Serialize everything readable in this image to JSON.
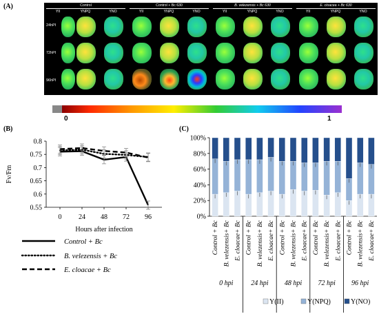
{
  "panels": {
    "a": "(A)",
    "b": "(B)",
    "c": "(C)"
  },
  "grid": {
    "groups": [
      {
        "label": "Control",
        "italic": false
      },
      {
        "label": "Control + Bc 630",
        "italic": false
      },
      {
        "label": "B. velezensis + Bc 630",
        "italic": true
      },
      {
        "label": "E. cloacea + Bc 630",
        "italic": true
      }
    ],
    "subheaders": [
      "YII",
      "YNPQ",
      "YNO"
    ],
    "rows": [
      "24hPI",
      "72hPI",
      "96hPI"
    ],
    "colorbar": {
      "min_label": "0",
      "max_label": "1"
    }
  },
  "chart_b": {
    "ylabel": "Fv/Fm",
    "xlabel": "Hours after infection",
    "legend": [
      "Control + Bc",
      "B. velezensis + Bc",
      "E. cloacae + Bc"
    ]
  },
  "chart_c": {
    "legend": [
      "Y(II)",
      "Y(NPQ)",
      "Y(NO)"
    ],
    "bar_labels": [
      "Control + Bc",
      "B. velezensis+ Bc",
      "E. cloacae+ Bc"
    ],
    "time_labels": [
      "0 hpi",
      "24 hpi",
      "48 hpi",
      "72 hpi",
      "96 hpi"
    ]
  },
  "colors": {
    "yii": "#dbe5f1",
    "ynpq": "#95b3d7",
    "yno": "#254f8c"
  },
  "chart_data": [
    {
      "type": "line",
      "x": [
        0,
        24,
        48,
        72,
        96
      ],
      "xticks": [
        "0",
        "24",
        "48",
        "72",
        "96"
      ],
      "ylim": [
        0.55,
        0.8
      ],
      "yticks": [
        "0.55",
        "0.6",
        "0.65",
        "0.7",
        "0.75",
        "0.8"
      ],
      "series": [
        {
          "name": "Control + Bc",
          "values": [
            0.76,
            0.762,
            0.73,
            0.74,
            0.558
          ],
          "style": "solid"
        },
        {
          "name": "B. velezensis + Bc",
          "values": [
            0.765,
            0.768,
            0.752,
            0.748,
            0.74
          ],
          "style": "dotted"
        },
        {
          "name": "E. cloacae + Bc",
          "values": [
            0.77,
            0.774,
            0.763,
            0.757,
            0.738
          ],
          "style": "dashed"
        }
      ]
    },
    {
      "type": "bar",
      "stacked": true,
      "ylim": [
        0,
        100
      ],
      "yticks": [
        "0%",
        "20%",
        "40%",
        "60%",
        "80%",
        "100%"
      ],
      "groups": [
        "0 hpi",
        "24 hpi",
        "48 hpi",
        "72 hpi",
        "96 hpi"
      ],
      "categories": [
        "Control + Bc",
        "B. velezensis+ Bc",
        "E. cloacae+ Bc"
      ],
      "series": [
        {
          "name": "Y(II)",
          "values": [
            [
              28,
              30,
              32
            ],
            [
              28,
              30,
              32
            ],
            [
              28,
              34,
              32
            ],
            [
              33,
              27,
              30
            ],
            [
              20,
              28,
              28
            ]
          ]
        },
        {
          "name": "Y(NPQ)",
          "values": [
            [
              45,
              40,
              40
            ],
            [
              44,
              42,
              43
            ],
            [
              42,
              36,
              36
            ],
            [
              35,
              43,
              40
            ],
            [
              28,
              40,
              38
            ]
          ]
        },
        {
          "name": "Y(NO)",
          "values": [
            [
              27,
              30,
              28
            ],
            [
              28,
              28,
              25
            ],
            [
              30,
              30,
              32
            ],
            [
              32,
              30,
              30
            ],
            [
              52,
              32,
              34
            ]
          ]
        }
      ]
    }
  ]
}
